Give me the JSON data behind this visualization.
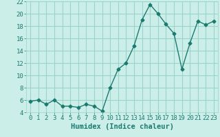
{
  "x": [
    0,
    1,
    2,
    3,
    4,
    5,
    6,
    7,
    8,
    9,
    10,
    11,
    12,
    13,
    14,
    15,
    16,
    17,
    18,
    19,
    20,
    21,
    22,
    23
  ],
  "y": [
    5.8,
    6.0,
    5.3,
    6.0,
    5.0,
    5.0,
    4.8,
    5.3,
    5.0,
    4.2,
    8.0,
    11.0,
    12.0,
    14.8,
    19.0,
    21.5,
    20.0,
    18.3,
    16.8,
    11.0,
    15.2,
    18.8,
    18.2,
    18.8
  ],
  "line_color": "#1a7a6e",
  "marker": "D",
  "marker_size": 2.5,
  "background_color": "#cceee8",
  "grid_color": "#99d4cc",
  "xlabel": "Humidex (Indice chaleur)",
  "xlim": [
    -0.5,
    23.5
  ],
  "ylim": [
    4,
    22
  ],
  "yticks": [
    4,
    6,
    8,
    10,
    12,
    14,
    16,
    18,
    20,
    22
  ],
  "xticks": [
    0,
    1,
    2,
    3,
    4,
    5,
    6,
    7,
    8,
    9,
    10,
    11,
    12,
    13,
    14,
    15,
    16,
    17,
    18,
    19,
    20,
    21,
    22,
    23
  ],
  "tick_color": "#1a7a6e",
  "label_color": "#1a7a6e",
  "xlabel_fontsize": 7.5,
  "tick_fontsize": 6.5
}
